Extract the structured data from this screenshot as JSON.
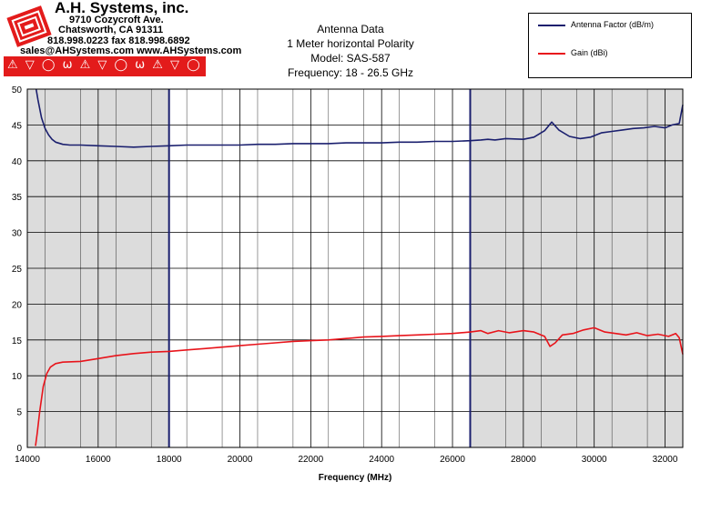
{
  "logo": {
    "company": "A.H. Systems, inc.",
    "address1": "9710 Cozycroft Ave.",
    "address2": "Chatsworth, CA 91311",
    "phone": "818.998.0223 fax 818.998.6892",
    "web": "sales@AHSystems.com www.AHSystems.com",
    "strip": "⚠ ▽ ◯ ω ⚠ ▽ ◯ ω ⚠ ▽ ◯ ω"
  },
  "chart_data": {
    "type": "line",
    "title": [
      "Antenna Data",
      "1 Meter horizontal Polarity",
      "Model: SAS-587",
      "Frequency: 18 - 26.5 GHz"
    ],
    "xlabel": "Frequency (MHz)",
    "ylabel": "",
    "xlim": [
      14000,
      32500
    ],
    "ylim": [
      0,
      50
    ],
    "xticks": [
      14000,
      16000,
      18000,
      20000,
      22000,
      24000,
      26000,
      28000,
      30000,
      32000
    ],
    "yticks": [
      0,
      5,
      10,
      15,
      20,
      25,
      30,
      35,
      40,
      45,
      50
    ],
    "grid": true,
    "legend_position": "top-right",
    "shaded_regions": [
      [
        14000,
        18000
      ],
      [
        26500,
        32500
      ]
    ],
    "band_edges": [
      18000,
      26500
    ],
    "series": [
      {
        "name": "Antenna Factor (dB/m)",
        "color": "#1a1f6e",
        "x": [
          14250,
          14300,
          14400,
          14500,
          14600,
          14700,
          14800,
          15000,
          15200,
          15500,
          16000,
          16500,
          17000,
          17500,
          18000,
          18500,
          19000,
          19500,
          20000,
          20500,
          21000,
          21500,
          22000,
          22500,
          23000,
          23500,
          24000,
          24500,
          25000,
          25500,
          26000,
          26500,
          26800,
          27000,
          27200,
          27500,
          28000,
          28300,
          28600,
          28800,
          29000,
          29300,
          29600,
          29900,
          30200,
          30500,
          30800,
          31100,
          31400,
          31700,
          32000,
          32200,
          32400,
          32500
        ],
        "y": [
          50,
          48.5,
          46,
          44.5,
          43.6,
          43.0,
          42.6,
          42.3,
          42.2,
          42.2,
          42.1,
          42.0,
          41.9,
          42.0,
          42.1,
          42.2,
          42.2,
          42.2,
          42.2,
          42.3,
          42.3,
          42.4,
          42.4,
          42.4,
          42.5,
          42.5,
          42.5,
          42.6,
          42.6,
          42.7,
          42.7,
          42.8,
          42.9,
          43.0,
          42.9,
          43.1,
          43.0,
          43.3,
          44.2,
          45.4,
          44.3,
          43.4,
          43.1,
          43.3,
          43.9,
          44.1,
          44.3,
          44.5,
          44.6,
          44.8,
          44.6,
          45.0,
          45.2,
          47.8
        ]
      },
      {
        "name": "Gain (dBi)",
        "color": "#e8141b",
        "x": [
          14230,
          14280,
          14350,
          14450,
          14550,
          14650,
          14800,
          15000,
          15500,
          16000,
          16500,
          17000,
          17500,
          18000,
          18500,
          19000,
          19500,
          20000,
          20500,
          21000,
          21500,
          22000,
          22500,
          23000,
          23500,
          24000,
          24500,
          25000,
          25500,
          26000,
          26500,
          26800,
          27000,
          27300,
          27600,
          28000,
          28300,
          28600,
          28750,
          28900,
          29100,
          29400,
          29700,
          30000,
          30300,
          30600,
          30900,
          31200,
          31500,
          31800,
          32100,
          32300,
          32400,
          32500
        ],
        "y": [
          0.2,
          2,
          5,
          8.5,
          10.3,
          11.2,
          11.7,
          11.9,
          12.0,
          12.4,
          12.8,
          13.1,
          13.3,
          13.4,
          13.6,
          13.8,
          14.0,
          14.2,
          14.4,
          14.6,
          14.8,
          14.9,
          15.0,
          15.2,
          15.4,
          15.5,
          15.6,
          15.7,
          15.8,
          15.9,
          16.1,
          16.3,
          15.9,
          16.3,
          16.0,
          16.3,
          16.1,
          15.5,
          14.1,
          14.6,
          15.7,
          15.9,
          16.4,
          16.7,
          16.1,
          15.9,
          15.7,
          16.0,
          15.6,
          15.8,
          15.5,
          15.9,
          15.3,
          13.0
        ]
      }
    ]
  }
}
